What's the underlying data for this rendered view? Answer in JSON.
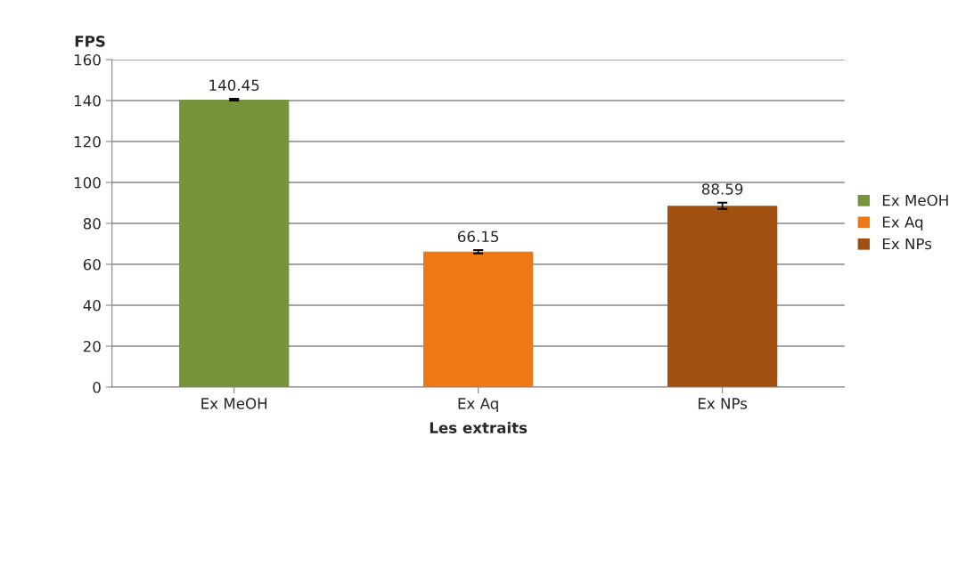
{
  "chart_data": {
    "type": "bar",
    "xlabel": "Les extraits",
    "ylabel": "FPS",
    "categories": [
      "Ex MeOH",
      "Ex Aq",
      "Ex NPs"
    ],
    "series": [
      {
        "name": "Ex MeOH",
        "color": "#77933c",
        "values": [
          140.45,
          null,
          null
        ],
        "errors": [
          0.4,
          null,
          null
        ]
      },
      {
        "name": "Ex Aq",
        "color": "#f07814",
        "values": [
          null,
          66.15,
          null
        ],
        "errors": [
          null,
          0.8,
          null
        ]
      },
      {
        "name": "Ex NPs",
        "color": "#a0500f",
        "values": [
          null,
          null,
          88.59
        ],
        "errors": [
          null,
          null,
          1.5
        ]
      }
    ],
    "data_labels": true,
    "ylim": [
      0,
      160
    ],
    "yticks": [
      0,
      20,
      40,
      60,
      80,
      100,
      120,
      140,
      160
    ],
    "grid": "y",
    "legend": "right"
  }
}
